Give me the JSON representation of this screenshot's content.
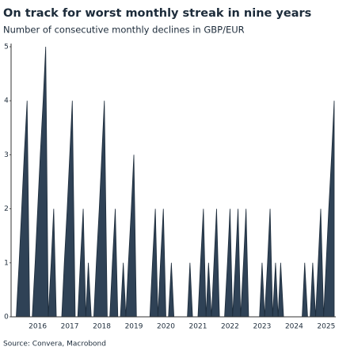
{
  "chart_data": {
    "type": "area",
    "title": "On track for worst monthly streak in nine years",
    "subtitle": "Number of consecutive monthly declines in GBP/EUR",
    "source": "Source: Convera, Macrobond",
    "color": "#2f4256",
    "x": [
      2015.67,
      2015.75,
      2015.83,
      2015.92,
      2016,
      2016.08,
      2016.17,
      2016.25,
      2016.33,
      2016.42,
      2016.5,
      2016.58,
      2016.67,
      2016.75,
      2016.83,
      2016.92,
      2017,
      2017.08,
      2017.17,
      2017.25,
      2017.33,
      2017.42,
      2017.5,
      2017.58,
      2017.67,
      2017.75,
      2017.83,
      2017.92,
      2018,
      2018.08,
      2018.17,
      2018.25,
      2018.33,
      2018.42,
      2018.5,
      2018.58,
      2018.67,
      2018.75,
      2018.83,
      2018.92,
      2019,
      2019.08,
      2019.17,
      2019.25,
      2019.33,
      2019.42,
      2019.5,
      2019.58,
      2019.67,
      2019.75,
      2019.83,
      2019.92,
      2020,
      2020.08,
      2020.17,
      2020.25,
      2020.33,
      2020.42,
      2020.5,
      2020.58,
      2020.67,
      2020.75,
      2020.83,
      2020.92,
      2021,
      2021.08,
      2021.17,
      2021.25,
      2021.33,
      2021.42,
      2021.5,
      2021.58,
      2021.67,
      2021.75,
      2021.83,
      2021.92,
      2022,
      2022.08,
      2022.17,
      2022.25,
      2022.33,
      2022.42,
      2022.5,
      2022.58,
      2022.67,
      2022.75,
      2022.83,
      2022.92,
      2023,
      2023.08,
      2023.17,
      2023.25,
      2023.33,
      2023.42,
      2023.5,
      2023.58,
      2023.67,
      2023.75,
      2023.83,
      2023.92,
      2024,
      2024.08,
      2024.17,
      2024.25,
      2024.33,
      2024.42,
      2024.5,
      2024.58,
      2024.67,
      2024.75,
      2024.83,
      2024.92,
      2025,
      2025.08,
      2025.17,
      2025.25,
      2025.33,
      2025.42,
      2025.5,
      2025.58,
      2025.67,
      2025.75
    ],
    "values": [
      0,
      0,
      0,
      1,
      2,
      3,
      4,
      0,
      0,
      1,
      2,
      3,
      4,
      5,
      0,
      1,
      2,
      0,
      0,
      0,
      1,
      2,
      3,
      4,
      0,
      0,
      1,
      2,
      0,
      1,
      0,
      0,
      1,
      2,
      3,
      4,
      0,
      0,
      1,
      2,
      0,
      0,
      1,
      0,
      1,
      2,
      3,
      0,
      0,
      0,
      0,
      0,
      0,
      1,
      2,
      0,
      1,
      2,
      0,
      0,
      1,
      0,
      0,
      0,
      0,
      0,
      0,
      1,
      0,
      0,
      0,
      1,
      2,
      0,
      1,
      0,
      1,
      2,
      0,
      0,
      0,
      1,
      2,
      0,
      1,
      2,
      0,
      1,
      2,
      0,
      0,
      0,
      0,
      0,
      1,
      0,
      1,
      2,
      0,
      1,
      0,
      1,
      0,
      0,
      0,
      0,
      0,
      0,
      0,
      0,
      1,
      0,
      0,
      1,
      0,
      1,
      2,
      0,
      1,
      2,
      3,
      4
    ],
    "xlim": [
      2015.67,
      2025.75
    ],
    "xticks": [
      {
        "value": 2016.5,
        "label": "2016"
      },
      {
        "value": 2017.5,
        "label": "2017"
      },
      {
        "value": 2018.5,
        "label": "2018"
      },
      {
        "value": 2019.5,
        "label": "2019"
      },
      {
        "value": 2020.5,
        "label": "2020"
      },
      {
        "value": 2021.5,
        "label": "2021"
      },
      {
        "value": 2022.5,
        "label": "2022"
      },
      {
        "value": 2023.5,
        "label": "2023"
      },
      {
        "value": 2024.5,
        "label": "2024"
      },
      {
        "value": 2025.5,
        "label": "2025"
      }
    ],
    "ylim": [
      0,
      5
    ],
    "yticks": [
      0,
      1,
      2,
      3,
      4,
      5
    ]
  }
}
